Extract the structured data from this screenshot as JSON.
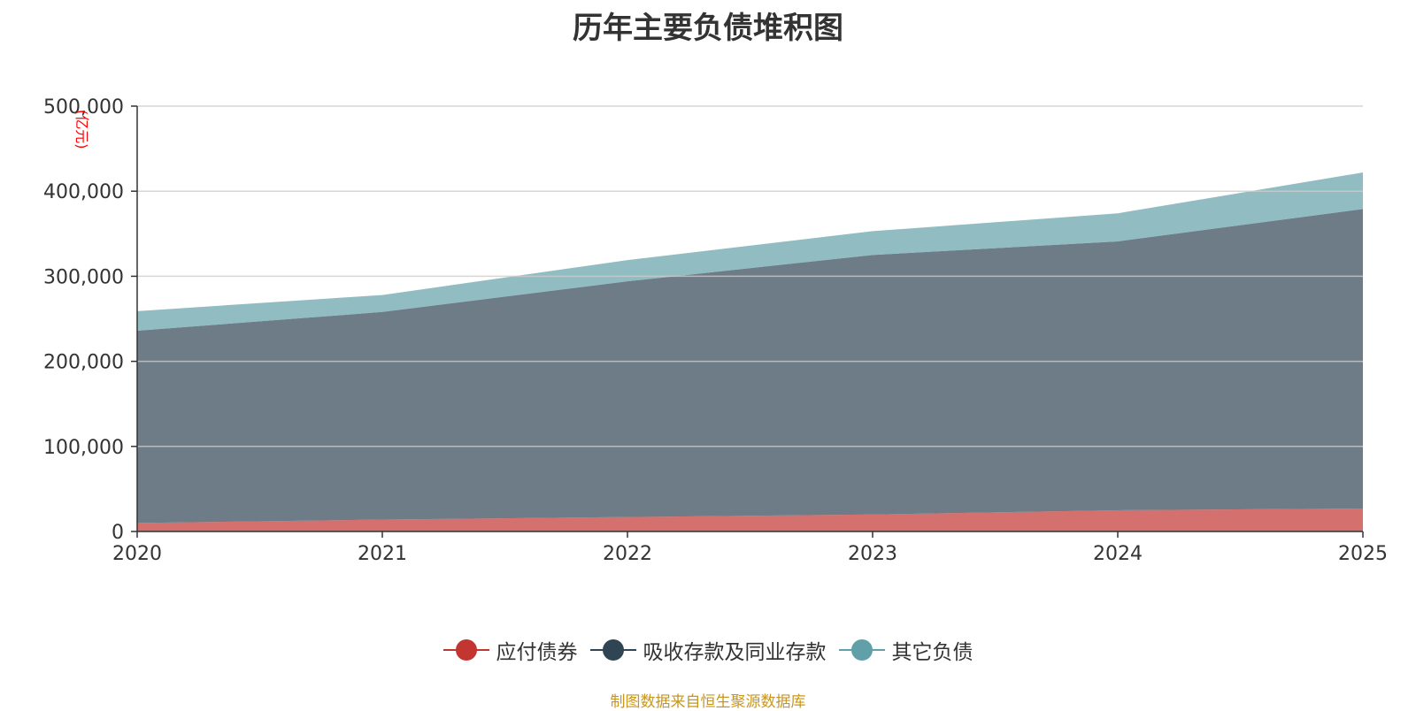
{
  "chart_data": {
    "type": "area",
    "stacked": true,
    "title": "历年主要负债堆积图",
    "ylabel": "(亿元)",
    "xlabel": "",
    "x": [
      "2020",
      "2021",
      "2022",
      "2023",
      "2024",
      "2025"
    ],
    "yticks": [
      "0",
      "100,000",
      "200,000",
      "300,000",
      "400,000",
      "500,000"
    ],
    "ylim": [
      0,
      500000
    ],
    "series": [
      {
        "name": "应付债券",
        "color": "#c23531",
        "values": [
          10000,
          14000,
          17000,
          20000,
          25000,
          27000
        ]
      },
      {
        "name": "吸收存款及同业存款",
        "color": "#2f4554",
        "values": [
          226000,
          244000,
          277000,
          305000,
          316000,
          352000
        ]
      },
      {
        "name": "其它负债",
        "color": "#61a0a8",
        "values": [
          23000,
          20000,
          25000,
          28000,
          33000,
          43000
        ]
      }
    ],
    "legend_position": "bottom",
    "grid": true,
    "footnote": "制图数据来自恒生聚源数据库"
  }
}
